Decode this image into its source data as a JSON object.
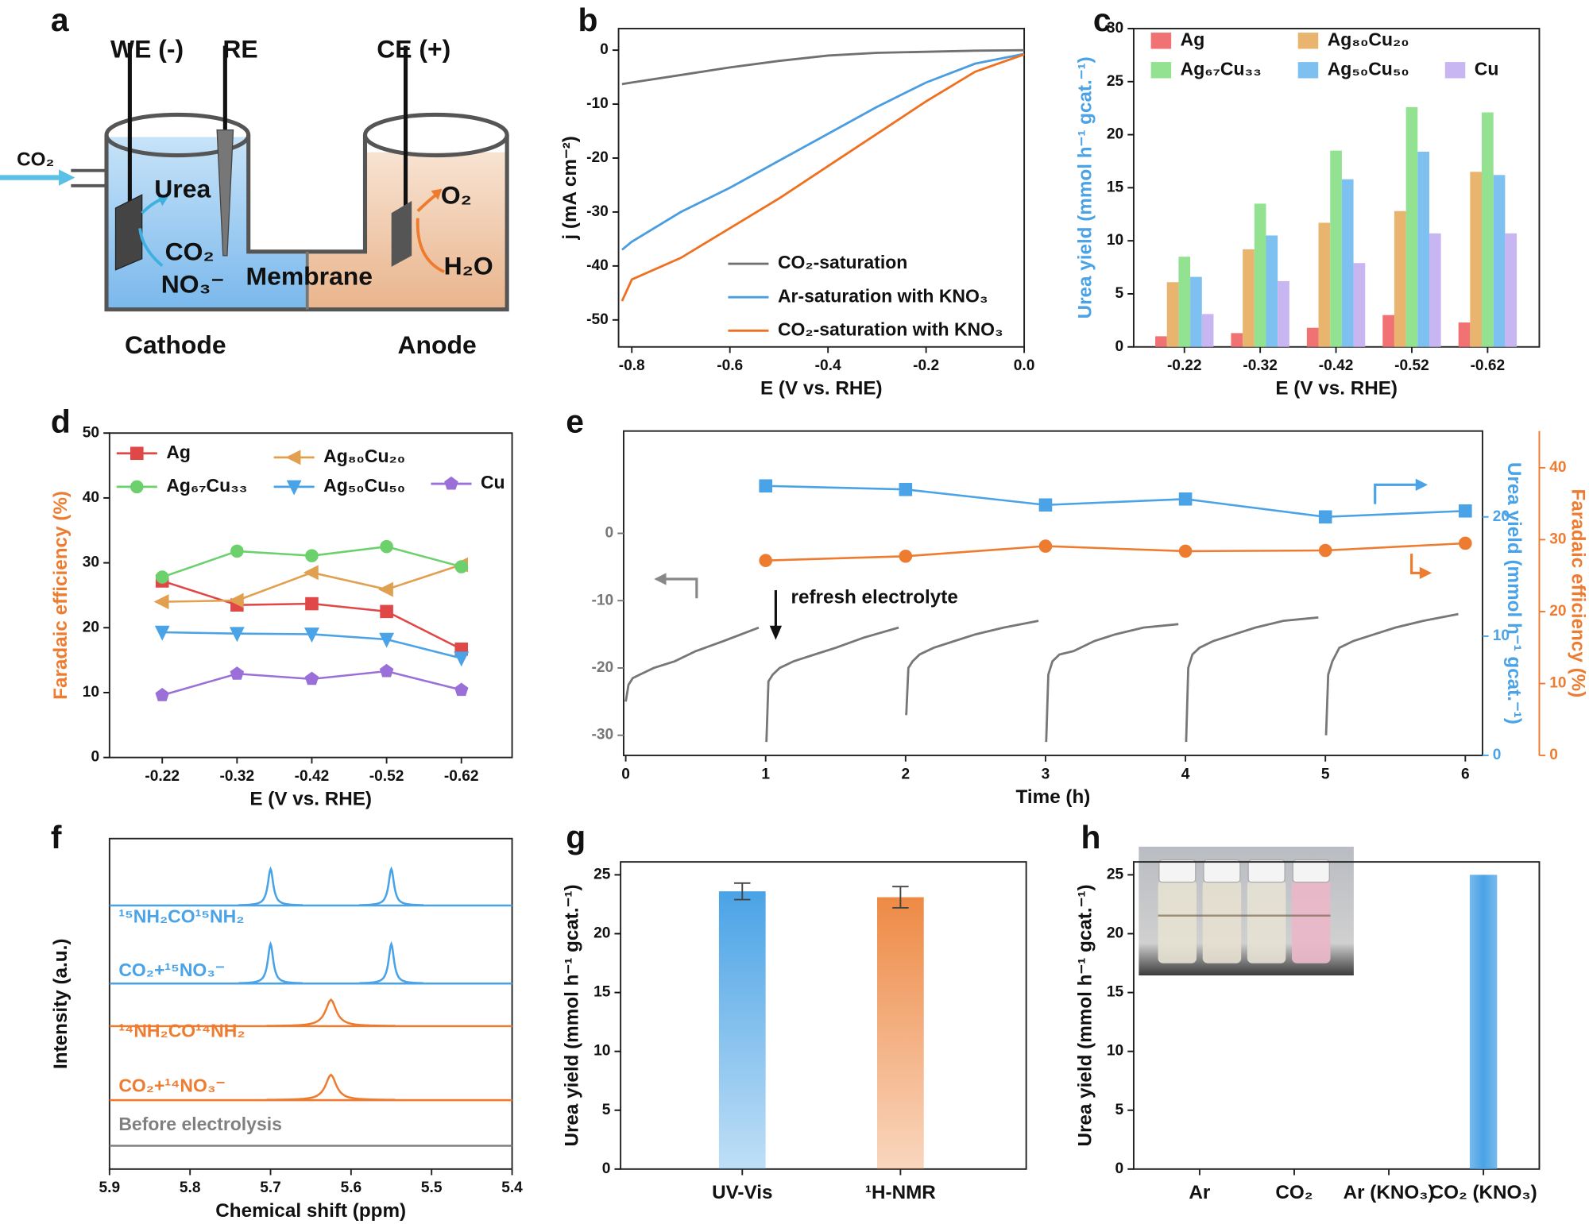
{
  "diagram": {
    "label": "a",
    "electrodes": [
      "WE (-)",
      "RE",
      "CE (+)"
    ],
    "inlet": "CO₂",
    "cathode_species": [
      "Urea",
      "CO₂",
      "NO₃⁻"
    ],
    "membrane": "Membrane",
    "anode_species": [
      "O₂",
      "H₂O"
    ],
    "compartments": [
      "Cathode",
      "Anode"
    ]
  },
  "chart_data": [
    {
      "type": "line",
      "label": "b",
      "xlabel": "E (V vs. RHE)",
      "ylabel": "j (mA cm⁻²)",
      "legend": "lower right",
      "x": [
        -0.82,
        -0.8,
        -0.7,
        -0.6,
        -0.5,
        -0.4,
        -0.3,
        -0.2,
        -0.1,
        0
      ],
      "xlim": [
        -0.827,
        0
      ],
      "xticks": [
        -0.8,
        -0.6,
        -0.4,
        -0.2,
        {
          "value": 0,
          "label": "0.0"
        }
      ],
      "ylim": [
        -55,
        4
      ],
      "yticks": [
        0,
        -10,
        -20,
        -30,
        -40,
        -50
      ],
      "series": [
        {
          "name": "CO₂-saturation",
          "color": "#707070",
          "values": [
            -6.3,
            -6,
            -4.6,
            -3.2,
            -2,
            -1,
            -0.5,
            -0.3,
            -0.1,
            0
          ]
        },
        {
          "name": "Ar-saturation with KNO₃",
          "color": "#4a9de0",
          "values": [
            -37,
            -35.5,
            -30,
            -25.5,
            -20.5,
            -15.5,
            -10.5,
            -6,
            -2.5,
            -0.7
          ]
        },
        {
          "name": "CO₂-saturation with KNO₃",
          "color": "#ee7020",
          "values": [
            -46.5,
            -42.5,
            -38.5,
            -33,
            -27.5,
            -21.5,
            -15.5,
            -9.5,
            -4,
            -0.8
          ]
        }
      ]
    },
    {
      "type": "bar",
      "label": "c",
      "xlabel": "E (V vs. RHE)",
      "ylabel": "Urea yield (mmol h⁻¹ gcat.⁻¹)",
      "ylabel_color": "#4aa3e6",
      "legend": "upper left",
      "categories": [
        "-0.22",
        "-0.32",
        "-0.42",
        "-0.52",
        "-0.62"
      ],
      "ylim": [
        0,
        30
      ],
      "yticks": [
        0,
        5,
        10,
        15,
        20,
        25,
        30
      ],
      "series": [
        {
          "name": "Ag",
          "color": "#f07272",
          "values": [
            1.0,
            1.3,
            1.8,
            3.0,
            2.3
          ]
        },
        {
          "name": "Ag₈₀Cu₂₀",
          "color": "#e8b46e",
          "values": [
            6.1,
            9.2,
            11.7,
            12.8,
            16.5
          ]
        },
        {
          "name": "Ag₆₇Cu₃₃",
          "color": "#92e292",
          "values": [
            8.5,
            13.5,
            18.5,
            22.6,
            22.1
          ]
        },
        {
          "name": "Ag₅₀Cu₅₀",
          "color": "#7ec0f0",
          "values": [
            6.6,
            10.5,
            15.8,
            18.4,
            16.2
          ]
        },
        {
          "name": "Cu",
          "color": "#c8b6f2",
          "values": [
            3.1,
            6.2,
            7.9,
            10.7,
            10.7
          ]
        }
      ]
    },
    {
      "type": "line",
      "label": "d",
      "xlabel": "E (V vs. RHE)",
      "ylabel": "Faradaic efficiency (%)",
      "ylabel_color": "#ee7c30",
      "legend": "upper left",
      "categories": [
        "-0.22",
        "-0.32",
        "-0.42",
        "-0.52",
        "-0.62"
      ],
      "ylim": [
        0,
        50
      ],
      "yticks": [
        0,
        10,
        20,
        30,
        40,
        50
      ],
      "series": [
        {
          "name": "Ag",
          "color": "#e04848",
          "marker": "square",
          "values": [
            27.2,
            23.5,
            23.7,
            22.5,
            16.7
          ]
        },
        {
          "name": "Ag₈₀Cu₂₀",
          "color": "#e0a050",
          "marker": "triangle-left",
          "values": [
            24.0,
            24.2,
            28.5,
            25.9,
            29.7
          ]
        },
        {
          "name": "Ag₆₇Cu₃₃",
          "color": "#6cd06c",
          "marker": "circle",
          "values": [
            27.8,
            31.8,
            31.1,
            32.5,
            29.4
          ]
        },
        {
          "name": "Ag₅₀Cu₅₀",
          "color": "#4aa3e6",
          "marker": "triangle-down",
          "values": [
            19.3,
            19.1,
            19.0,
            18.2,
            15.3
          ]
        },
        {
          "name": "Cu",
          "color": "#9a70d8",
          "marker": "pentagon",
          "values": [
            9.6,
            12.9,
            12.1,
            13.3,
            10.4
          ]
        }
      ]
    },
    {
      "type": "line",
      "label": "e",
      "xlabel": "Time (h)",
      "y2label": "Urea yield (mmol h⁻¹ gcat.⁻¹)",
      "y3label": "Faradaic efficiency (%)",
      "annotation": "refresh electrolyte",
      "xlim": [
        -0.015,
        6.123
      ],
      "xticks": [
        0,
        1,
        2,
        3,
        4,
        5,
        6
      ],
      "ylim": [
        -33,
        15.2
      ],
      "yticks": [
        0,
        -10,
        -20,
        -30
      ],
      "y2lim": [
        0,
        27.2
      ],
      "y2ticks": [
        0,
        10,
        20
      ],
      "y3lim": [
        0,
        45.1
      ],
      "y3ticks": [
        0,
        10,
        20,
        30,
        40
      ],
      "series": [
        {
          "color": "#777777",
          "axis": "y",
          "x": [
            0,
            0.02,
            0.05,
            0.1,
            0.2,
            0.35,
            0.5,
            0.7,
            0.95,
            0.98,
            1.005,
            1.02,
            1.05,
            1.1,
            1.2,
            1.35,
            1.5,
            1.7,
            1.95,
            1.98,
            2.005,
            2.02,
            2.05,
            2.1,
            2.2,
            2.35,
            2.5,
            2.7,
            2.95,
            2.98,
            3.005,
            3.02,
            3.05,
            3.1,
            3.2,
            3.35,
            3.5,
            3.7,
            3.95,
            3.98,
            4.005,
            4.02,
            4.05,
            4.1,
            4.2,
            4.35,
            4.5,
            4.7,
            4.95,
            4.98,
            5.005,
            5.02,
            5.05,
            5.1,
            5.2,
            5.35,
            5.5,
            5.7,
            5.95
          ],
          "values": [
            -25,
            -22.5,
            -21.5,
            -21,
            -20,
            -19,
            -17.5,
            -16,
            -14,
            null,
            -31,
            -22,
            -21,
            -20,
            -19,
            -18,
            -17,
            -15.5,
            -14,
            null,
            -27,
            -20,
            -19,
            -18,
            -17,
            -16,
            -15,
            -14,
            -13,
            null,
            -31,
            -21,
            -19,
            -18,
            -17.5,
            -16,
            -15,
            -14,
            -13.5,
            null,
            -31,
            -20,
            -18,
            -17,
            -16,
            -15,
            -14,
            -13,
            -12.5,
            null,
            -30,
            -21,
            -19,
            -17,
            -16,
            -15,
            -14,
            -13,
            -12
          ]
        },
        {
          "color": "#4aa3e6",
          "axis": "y2",
          "marker": "square",
          "x": [
            1,
            2,
            3,
            4,
            5,
            6
          ],
          "values": [
            22.6,
            22.3,
            21.0,
            21.5,
            20.0,
            20.5
          ]
        },
        {
          "color": "#ee7c30",
          "axis": "y3",
          "marker": "circle",
          "x": [
            1,
            2,
            3,
            4,
            5,
            6
          ],
          "values": [
            27.1,
            27.7,
            29.1,
            28.4,
            28.5,
            29.5
          ]
        }
      ]
    },
    {
      "type": "spectrum",
      "label": "f",
      "xlabel": "Chemical shift (ppm)",
      "ylabel": "Intensity (a.u.)",
      "xlim": [
        5.9,
        5.4
      ],
      "xticks": [
        5.9,
        5.8,
        5.7,
        5.6,
        5.5,
        5.4
      ],
      "series": [
        {
          "name": "¹⁵NH₂CO¹⁵NH₂",
          "color": "#4aa3e6",
          "peaks": [
            5.7,
            5.55
          ],
          "values": [
            36,
            36
          ],
          "width": 0.004
        },
        {
          "name": "CO₂+¹⁵NO₃⁻",
          "color": "#4aa3e6",
          "peaks": [
            5.7,
            5.55
          ],
          "values": [
            39,
            39
          ],
          "width": 0.004
        },
        {
          "name": "¹⁴NH₂CO¹⁴NH₂",
          "color": "#ee7c30",
          "peaks": [
            5.625
          ],
          "values": [
            26
          ],
          "width": 0.008
        },
        {
          "name": "CO₂+¹⁴NO₃⁻",
          "color": "#ee7c30",
          "peaks": [
            5.625
          ],
          "values": [
            25
          ],
          "width": 0.008
        },
        {
          "name": "Before electrolysis",
          "color": "#808080",
          "peaks": [],
          "values": [],
          "width": 0.008
        }
      ]
    },
    {
      "type": "bar",
      "label": "g",
      "ylabel": "Urea yield (mmol h⁻¹ gcat.⁻¹)",
      "categories": [
        "UV-Vis",
        "¹H-NMR"
      ],
      "values": [
        23.6,
        23.1
      ],
      "errors": [
        0.7,
        0.9
      ],
      "colors": [
        "#4aa3e6",
        "#ee8a45"
      ],
      "ylim": [
        0,
        26.1
      ],
      "yticks": [
        0,
        5,
        10,
        15,
        20,
        25
      ]
    },
    {
      "type": "bar",
      "label": "h",
      "ylabel": "Urea yield (mmol h⁻¹ gcat.⁻¹)",
      "categories": [
        "Ar",
        "CO₂",
        "Ar (KNO₃)",
        "CO₂ (KNO₃)"
      ],
      "values": [
        0,
        0,
        0,
        25
      ],
      "color": "#4aa3e6",
      "ylim": [
        0,
        26.1
      ],
      "yticks": [
        0,
        5,
        10,
        15,
        20,
        25
      ]
    }
  ]
}
